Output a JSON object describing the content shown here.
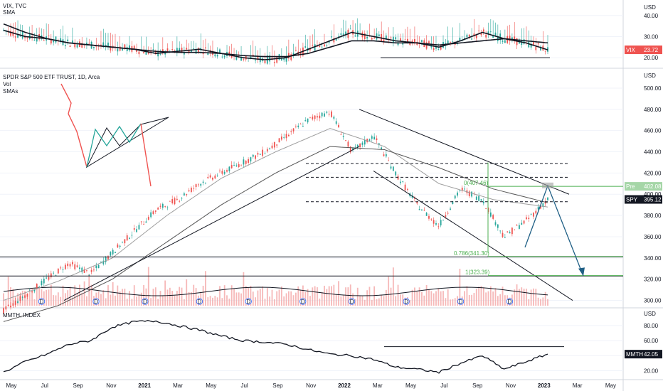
{
  "panes": {
    "vix": {
      "label": "VIX, TVC",
      "sub": "SMA",
      "currency": "USD",
      "price_tag": "VIX",
      "price_value": "23.72"
    },
    "spy": {
      "label": "SPDR S&P 500 ETF TRUST, 1D, Arca",
      "sub1": "Vol",
      "sub2": "SMAs",
      "currency": "USD",
      "price_tag": "SPY",
      "price_value": "395.12",
      "pre_tag": "Pre",
      "pre_value": "402.08"
    },
    "mmth": {
      "label": "MMTH, INDEX",
      "currency": "USD",
      "price_tag": "MMTH",
      "price_value": "42.05"
    }
  },
  "fib_labels": {
    "top": "0(407.46)",
    "mid": "0.786(341.30)",
    "low": "1(323.39)"
  },
  "dividend_marker": "D",
  "colors": {
    "up": "#26a69a",
    "down": "#ef5350",
    "line": "#131722",
    "sma_gray": "#9e9e9e",
    "fib": "#4caf50",
    "arrow": "#1f5f85",
    "vol_bar": "#f4a6a6",
    "grid": "#f0f3fa"
  },
  "chart_data": [
    {
      "type": "line",
      "title": "VIX, TVC",
      "y_ticks": [
        20,
        30,
        40
      ],
      "ylim": [
        17,
        46
      ],
      "series": [
        {
          "name": "VIX",
          "x_index": [
            0,
            4,
            8,
            12,
            16,
            20,
            24,
            28,
            32,
            36,
            40,
            44,
            48,
            52,
            56,
            60,
            64,
            68,
            72,
            76,
            80,
            84,
            88,
            92,
            96,
            100
          ],
          "values": [
            33,
            30,
            29,
            27,
            26,
            25,
            24,
            22,
            23,
            24,
            22,
            20,
            19,
            20,
            24,
            28,
            32,
            30,
            28,
            27,
            25,
            28,
            32,
            29,
            27,
            23.72
          ]
        },
        {
          "name": "SMA",
          "x_index": [
            0,
            4,
            8,
            12,
            16,
            20,
            24,
            28,
            32,
            36,
            40,
            44,
            48,
            52,
            56,
            60,
            64,
            68,
            72,
            76,
            80,
            84,
            88,
            92,
            96,
            100
          ],
          "values": [
            36,
            32,
            29,
            27,
            26,
            25,
            24,
            23,
            22.5,
            22.5,
            22,
            21,
            20.5,
            20.5,
            22,
            25,
            28,
            28,
            27,
            27,
            26,
            27,
            28,
            29,
            28,
            27
          ]
        }
      ]
    },
    {
      "type": "line",
      "title": "SPDR S&P 500 ETF TRUST, 1D, Arca",
      "y_ticks": [
        300,
        320,
        340,
        360,
        380,
        400,
        420,
        440,
        460,
        480,
        500
      ],
      "ylim": [
        295,
        508
      ],
      "series": [
        {
          "name": "SPY",
          "x_index": [
            0,
            4,
            8,
            12,
            16,
            20,
            24,
            28,
            32,
            36,
            40,
            44,
            48,
            52,
            56,
            60,
            64,
            68,
            72,
            76,
            80,
            84,
            88,
            92,
            96,
            100
          ],
          "values": [
            290,
            305,
            320,
            335,
            325,
            345,
            365,
            385,
            395,
            410,
            420,
            430,
            440,
            455,
            470,
            478,
            440,
            455,
            420,
            390,
            370,
            405,
            395,
            360,
            375,
            395.12
          ]
        },
        {
          "name": "SMA 50",
          "x_index": [
            0,
            10,
            20,
            30,
            40,
            50,
            60,
            70,
            80,
            90,
            100
          ],
          "values": [
            300,
            318,
            340,
            380,
            415,
            440,
            462,
            445,
            410,
            395,
            388
          ]
        },
        {
          "name": "SMA 200",
          "x_index": [
            0,
            10,
            20,
            30,
            40,
            50,
            60,
            70,
            80,
            90,
            100
          ],
          "values": [
            280,
            295,
            320,
            355,
            390,
            420,
            445,
            442,
            425,
            405,
            392
          ]
        }
      ]
    },
    {
      "type": "line",
      "title": "MMTH, INDEX",
      "y_ticks": [
        20,
        40,
        60,
        80
      ],
      "ylim": [
        12,
        95
      ],
      "series": [
        {
          "name": "MMTH",
          "x_index": [
            0,
            4,
            8,
            12,
            16,
            20,
            24,
            28,
            32,
            36,
            40,
            44,
            48,
            52,
            56,
            60,
            64,
            68,
            72,
            76,
            80,
            84,
            88,
            92,
            96,
            100
          ],
          "values": [
            18,
            32,
            42,
            55,
            60,
            78,
            85,
            86,
            80,
            74,
            66,
            60,
            58,
            55,
            48,
            42,
            40,
            35,
            25,
            22,
            18,
            30,
            40,
            22,
            32,
            42.05
          ]
        }
      ]
    }
  ],
  "time_axis": [
    "May",
    "Jul",
    "Sep",
    "Nov",
    "2021",
    "Mar",
    "May",
    "Jul",
    "Sep",
    "Nov",
    "2022",
    "Mar",
    "May",
    "Jul",
    "Sep",
    "Nov",
    "2023",
    "Mar",
    "May"
  ]
}
